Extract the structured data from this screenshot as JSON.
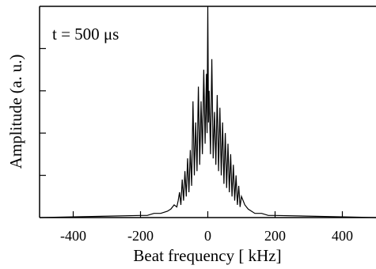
{
  "chart_data": {
    "type": "line",
    "title": "",
    "annotation": "t = 500 μs",
    "xlabel": "Beat frequency [ kHz]",
    "ylabel": "Amplitude (a. u.)",
    "xlim": [
      -500,
      500
    ],
    "ylim": [
      0,
      1
    ],
    "x_ticks": [
      -400,
      -200,
      0,
      200,
      400
    ],
    "x_tick_labels": [
      "-400",
      "-200",
      "0",
      "200",
      "400"
    ],
    "y_ticks": [
      0.2,
      0.4,
      0.6,
      0.8
    ],
    "grid": false,
    "series": [
      {
        "x": [
          -200,
          -180,
          -160,
          -140,
          -120,
          -110,
          -100,
          -92,
          -88,
          -84,
          -80,
          -76,
          -72,
          -68,
          -64,
          -60,
          -56,
          -52,
          -48,
          -44,
          -40,
          -36,
          -32,
          -28,
          -24,
          -20,
          -16,
          -12,
          -8,
          -4,
          -2,
          0,
          2,
          4,
          8,
          12,
          16,
          20,
          24,
          28,
          32,
          36,
          40,
          44,
          48,
          52,
          56,
          60,
          64,
          68,
          72,
          76,
          80,
          84,
          88,
          92,
          96,
          100,
          110,
          120,
          140,
          160,
          180,
          200
        ],
        "y": [
          0.01,
          0.01,
          0.02,
          0.02,
          0.03,
          0.04,
          0.06,
          0.05,
          0.08,
          0.12,
          0.06,
          0.18,
          0.08,
          0.22,
          0.1,
          0.28,
          0.12,
          0.32,
          0.15,
          0.55,
          0.2,
          0.45,
          0.22,
          0.62,
          0.25,
          0.55,
          0.3,
          0.7,
          0.35,
          0.68,
          0.4,
          1.0,
          0.45,
          0.6,
          0.3,
          0.75,
          0.28,
          0.5,
          0.25,
          0.58,
          0.22,
          0.52,
          0.2,
          0.45,
          0.16,
          0.4,
          0.14,
          0.35,
          0.12,
          0.3,
          0.1,
          0.25,
          0.08,
          0.2,
          0.06,
          0.15,
          0.05,
          0.1,
          0.06,
          0.04,
          0.02,
          0.02,
          0.01,
          0.01
        ]
      }
    ]
  }
}
